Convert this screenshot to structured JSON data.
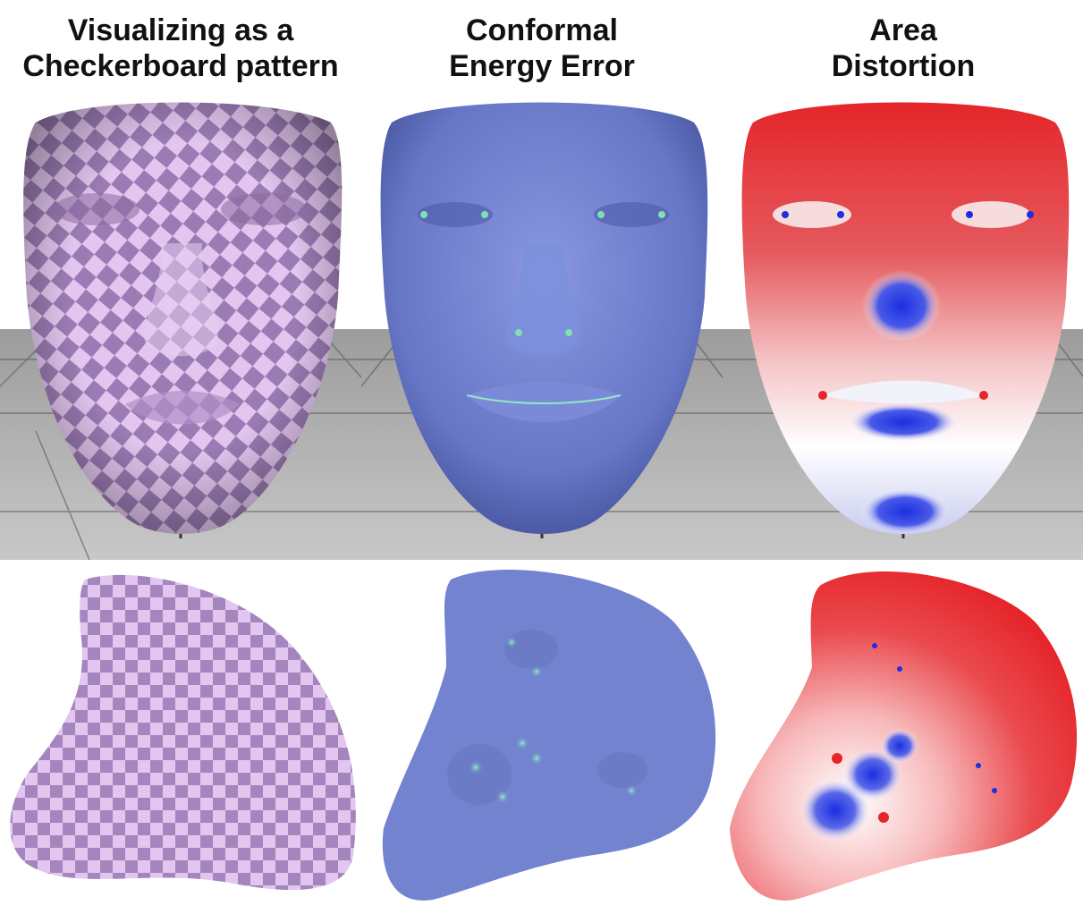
{
  "columns": [
    {
      "title_line1": "Visualizing as a",
      "title_line2": "Checkerboard pattern"
    },
    {
      "title_line1": "Conformal",
      "title_line2": "Energy Error"
    },
    {
      "title_line1": "Area",
      "title_line2": "Distortion"
    }
  ],
  "colors": {
    "checker_dark": "#9b7bb3",
    "checker_light": "#e2c6ef",
    "conformal_base": "#6f7fd0",
    "conformal_hot": "#7fe0b0",
    "area_red": "#e5252a",
    "area_white": "#ffffff",
    "area_blue": "#1a2fe0",
    "floor": "#a8a8a8"
  }
}
